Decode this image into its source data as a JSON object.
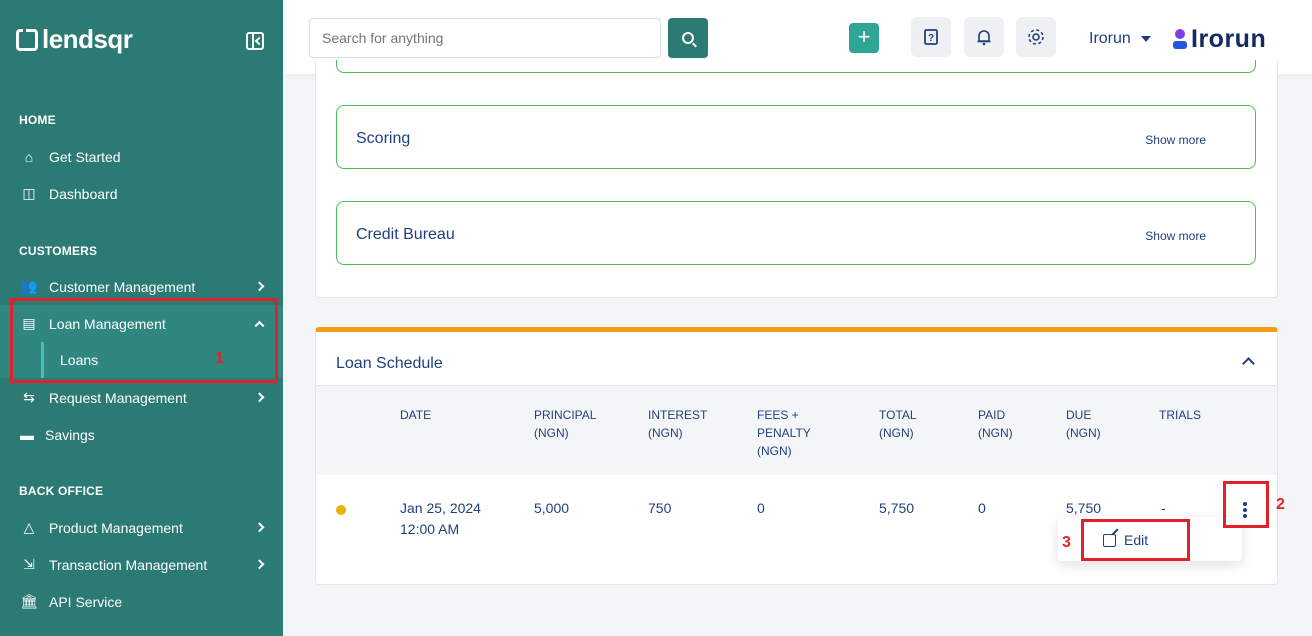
{
  "sidebar": {
    "logo": "lendsqr",
    "sections": {
      "home": "HOME",
      "customers": "CUSTOMERS",
      "back_office": "BACK OFFICE"
    },
    "items": [
      {
        "label": "Get Started"
      },
      {
        "label": "Dashboard"
      },
      {
        "label": "Customer Management"
      },
      {
        "label": "Loan Management"
      },
      {
        "label": "Loans"
      },
      {
        "label": "Request Management"
      },
      {
        "label": "Savings"
      },
      {
        "label": "Product Management"
      },
      {
        "label": "Transaction Management"
      },
      {
        "label": "API Service"
      }
    ]
  },
  "header": {
    "search_placeholder": "Search for anything",
    "user": "Irorun",
    "brand": "Irorun"
  },
  "panels": [
    {
      "title": "Scoring",
      "action": "Show more"
    },
    {
      "title": "Credit Bureau",
      "action": "Show more"
    }
  ],
  "schedule": {
    "title": "Loan Schedule",
    "columns": [
      "DATE",
      "PRINCIPAL (NGN)",
      "INTEREST (NGN)",
      "FEES + PENALTY (NGN)",
      "TOTAL (NGN)",
      "PAID (NGN)",
      "DUE (NGN)",
      "TRIALS"
    ],
    "column_lines": [
      [
        "DATE"
      ],
      [
        "PRINCIPAL",
        "(NGN)"
      ],
      [
        "INTEREST",
        "(NGN)"
      ],
      [
        "FEES +",
        "PENALTY",
        "(NGN)"
      ],
      [
        "TOTAL",
        "(NGN)"
      ],
      [
        "PAID",
        "(NGN)"
      ],
      [
        "DUE",
        "(NGN)"
      ],
      [
        "TRIALS"
      ]
    ],
    "rows": [
      {
        "status_color": "#e9b200",
        "date_line1": "Jan 25, 2024",
        "date_line2": "12:00 AM",
        "principal": "5,000",
        "interest": "750",
        "fees_penalty": "0",
        "total": "5,750",
        "paid": "0",
        "due": "5,750",
        "trials": "-"
      }
    ],
    "menu": {
      "edit": "Edit"
    }
  },
  "annotations": [
    "1",
    "2",
    "3"
  ],
  "colors": {
    "sidebar": "#2b7a74",
    "accent": "#2fa596",
    "annotation": "#e2222b",
    "schedule_top": "#f39c12",
    "panel_border": "#4dbf4d"
  }
}
